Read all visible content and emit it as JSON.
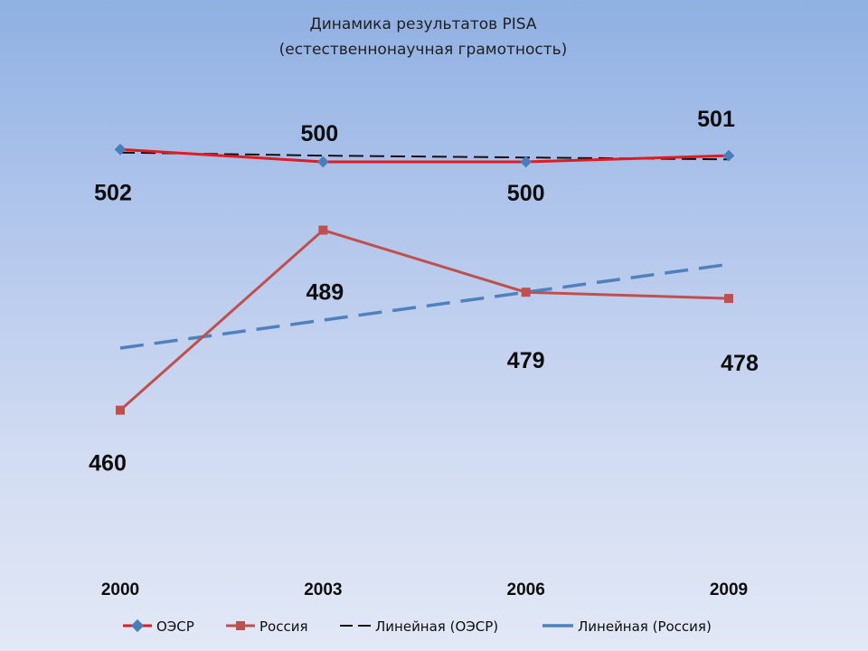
{
  "chart_data": {
    "type": "line",
    "title": "Динамика результатов PISA",
    "subtitle": "(естественнонаучная грамотность)",
    "x": [
      "2000",
      "2003",
      "2006",
      "2009"
    ],
    "ylim": [
      440,
      515
    ],
    "grid": false,
    "legend_position": "bottom",
    "series": [
      {
        "name": "ОЭСР",
        "values": [
          502,
          500,
          500,
          501
        ],
        "color": "#e01b22",
        "marker": "diamond",
        "marker_color": "#4a7ebb",
        "labels": [
          "502",
          "500",
          "500",
          "501"
        ]
      },
      {
        "name": "Россия",
        "values": [
          460,
          489,
          479,
          478
        ],
        "color": "#c0504d",
        "marker": "square",
        "marker_color": "#c0504d",
        "labels": [
          "460",
          "489",
          "479",
          "478"
        ]
      }
    ],
    "trendlines": [
      {
        "name": "Линейная (ОЭСР)",
        "of": "ОЭСР",
        "values": [
          501.5,
          501.0,
          500.7,
          500.4
        ],
        "color": "#111111",
        "dash": "long"
      },
      {
        "name": "Линейная (Россия)",
        "of": "Россия",
        "values": [
          470.0,
          474.5,
          479.0,
          483.5
        ],
        "color": "#4f81bd",
        "dash": "long"
      }
    ]
  }
}
